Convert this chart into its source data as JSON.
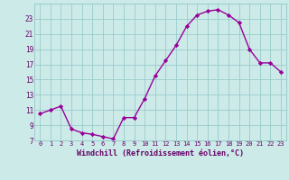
{
  "x": [
    0,
    1,
    2,
    3,
    4,
    5,
    6,
    7,
    8,
    9,
    10,
    11,
    12,
    13,
    14,
    15,
    16,
    17,
    18,
    19,
    20,
    21,
    22,
    23
  ],
  "y": [
    10.5,
    11.0,
    11.5,
    8.5,
    8.0,
    7.8,
    7.5,
    7.2,
    10.0,
    10.0,
    12.5,
    15.5,
    17.5,
    19.5,
    22.0,
    23.5,
    24.0,
    24.2,
    23.5,
    22.5,
    19.0,
    17.2,
    17.2,
    16.0
  ],
  "line_color": "#990099",
  "marker": "D",
  "marker_size": 2.2,
  "bg_color": "#cceae8",
  "grid_color": "#99cccc",
  "xlabel": "Windchill (Refroidissement éolien,°C)",
  "xlabel_color": "#660066",
  "tick_color": "#660066",
  "yticks": [
    7,
    9,
    11,
    13,
    15,
    17,
    19,
    21,
    23
  ],
  "xticks": [
    0,
    1,
    2,
    3,
    4,
    5,
    6,
    7,
    8,
    9,
    10,
    11,
    12,
    13,
    14,
    15,
    16,
    17,
    18,
    19,
    20,
    21,
    22,
    23
  ],
  "ylim": [
    7,
    25
  ],
  "xlim": [
    -0.5,
    23.5
  ],
  "tick_fontsize": 5.0,
  "xlabel_fontsize": 6.0,
  "ylabel_fontsize": 5.5,
  "linewidth": 1.0
}
